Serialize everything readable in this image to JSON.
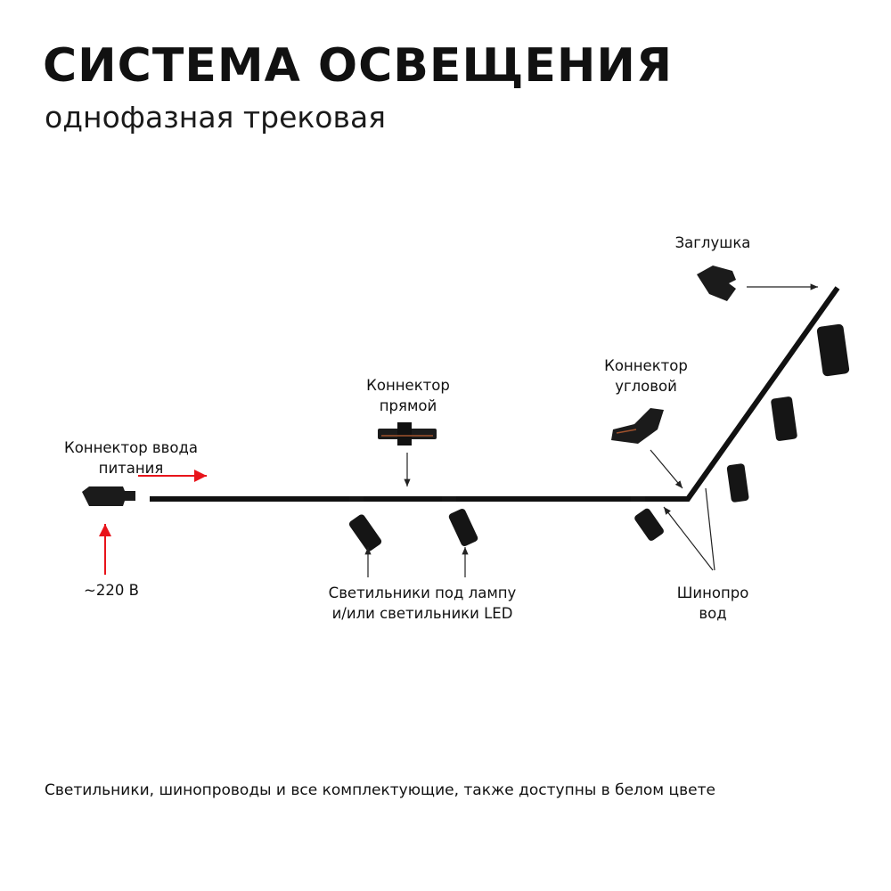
{
  "header": {
    "title": "СИСТЕМА ОСВЕЩЕНИЯ",
    "subtitle": "однофазная трековая"
  },
  "labels": {
    "end_cap": "Заглушка",
    "corner_connector_1": "Коннектор",
    "corner_connector_2": "угловой",
    "straight_connector_1": "Коннектор",
    "straight_connector_2": "прямой",
    "power_connector_1": "Коннектор ввода",
    "power_connector_2": "питания",
    "voltage": "~220 В",
    "luminaires_1": "Светильники под лампу",
    "luminaires_2": "и/или светильники LED",
    "busbar_1": "Шинопро",
    "busbar_2": "вод"
  },
  "footer": "Светильники, шинопроводы и все комплектующие, также доступны в белом цвете",
  "colors": {
    "track": "#111111",
    "power_arrow": "#e8141b",
    "pointer_arrow": "#222222"
  }
}
